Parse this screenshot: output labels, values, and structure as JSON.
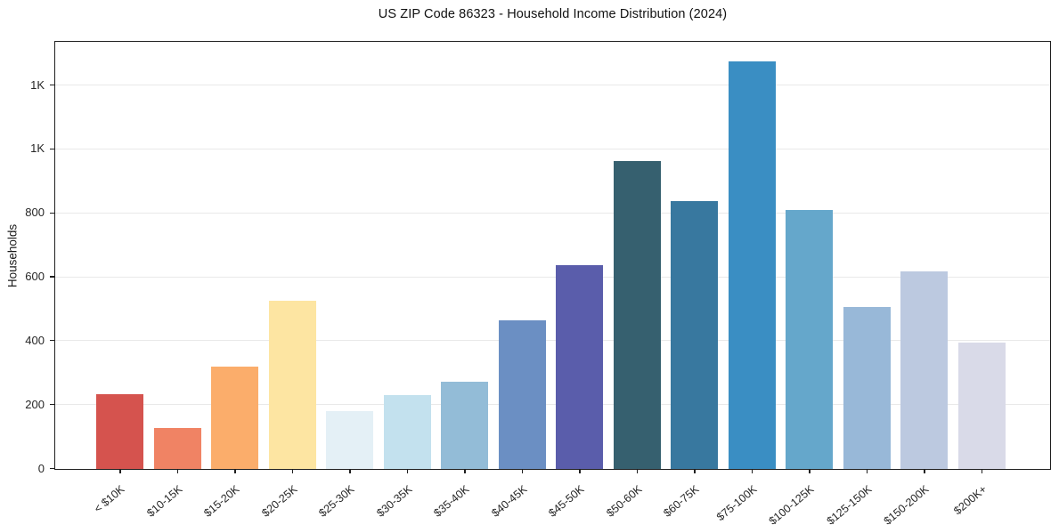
{
  "title": "US ZIP Code 86323 - Household Income Distribution (2024)",
  "chart_data": {
    "type": "bar",
    "title": "US ZIP Code 86323 - Household Income Distribution (2024)",
    "xlabel": "",
    "ylabel": "Households",
    "categories": [
      "< $10K",
      "$10-15K",
      "$15-20K",
      "$20-25K",
      "$25-30K",
      "$30-35K",
      "$35-40K",
      "$40-45K",
      "$45-50K",
      "$50-60K",
      "$60-75K",
      "$75-100K",
      "$100-125K",
      "$125-150K",
      "$150-200K",
      "$200K+"
    ],
    "values": [
      235,
      128,
      321,
      527,
      182,
      232,
      274,
      465,
      638,
      965,
      839,
      1275,
      811,
      506,
      617,
      396
    ],
    "bar_colors": [
      "#d5534e",
      "#f08364",
      "#fbad6b",
      "#fde5a2",
      "#e4f0f6",
      "#c3e1ee",
      "#93bcd7",
      "#6b8fc3",
      "#5a5dab",
      "#36606f",
      "#38789f",
      "#3a8ec3",
      "#65a7cb",
      "#98b8d8",
      "#bcc9e0",
      "#d9dae8"
    ],
    "ylim": [
      0,
      1334
    ],
    "yticks": [
      {
        "value": 0,
        "label": "0"
      },
      {
        "value": 200,
        "label": "200"
      },
      {
        "value": 400,
        "label": "400"
      },
      {
        "value": 600,
        "label": "600"
      },
      {
        "value": 800,
        "label": "800"
      },
      {
        "value": 1000,
        "label": "1K"
      },
      {
        "value": 1200,
        "label": "1K"
      }
    ],
    "grid": "horizontal-only",
    "legend": "none"
  },
  "colors": {
    "background": "#ffffff",
    "spine": "#1f1f1f",
    "grid": "#e9e9e9",
    "tick_text": "#262626",
    "title_text": "#111111"
  }
}
